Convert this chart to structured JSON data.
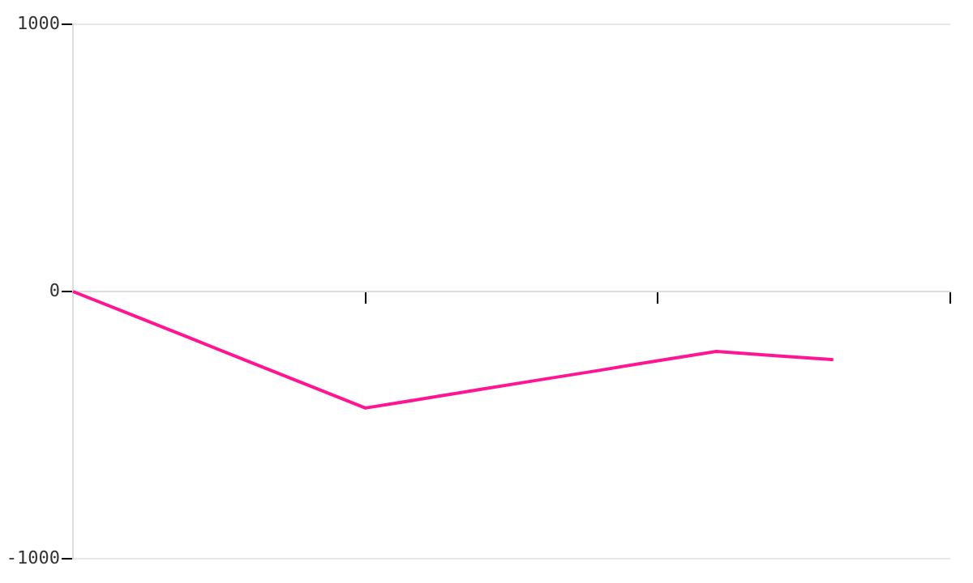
{
  "chart_data": {
    "type": "line",
    "categories": [
      null,
      null,
      null,
      null,
      null,
      null,
      null,
      null,
      null,
      null,
      null,
      null,
      null,
      null,
      null,
      null
    ],
    "series": [
      {
        "color": "#ff1493",
        "values": [
          0,
          -87,
          -174,
          -262,
          -349,
          -436,
          -401,
          -365,
          -330,
          -295,
          -259,
          -224,
          -240,
          -255,
          null,
          null
        ]
      }
    ],
    "ylim": [
      -1000,
      1000
    ],
    "yticks": [
      -1000,
      0,
      1000
    ],
    "grid": "y",
    "legend": false,
    "marker": "none",
    "line_style": "solid"
  }
}
